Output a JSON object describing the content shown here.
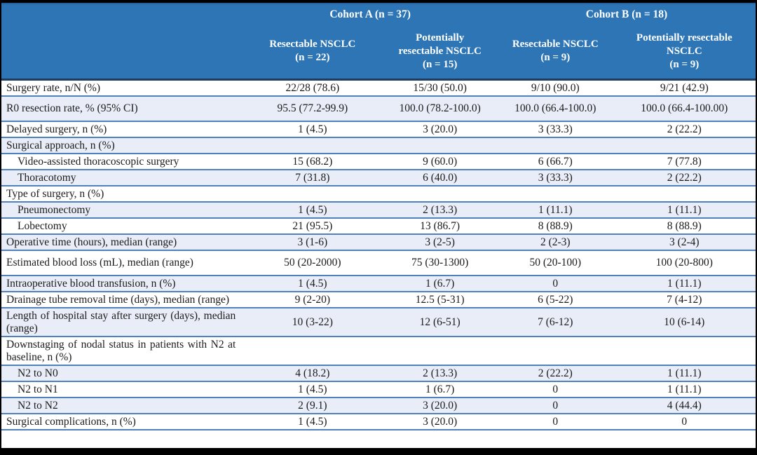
{
  "table": {
    "cohorts": [
      {
        "label": "Cohort A (n = 37)"
      },
      {
        "label": "Cohort B (n = 18)"
      }
    ],
    "columns": [
      {
        "label": "Resectable NSCLC\n(n = 22)"
      },
      {
        "label": "Potentially\nresectable NSCLC\n(n = 15)"
      },
      {
        "label": "Resectable NSCLC\n(n = 9)"
      },
      {
        "label": "Potentially resectable\nNSCLC\n(n = 9)"
      }
    ],
    "rows": [
      {
        "label": "Surgery rate, n/N (%)",
        "indent": false,
        "size": "",
        "values": [
          "22/28 (78.6)",
          "15/30 (50.0)",
          "9/10 (90.0)",
          "9/21 (42.9)"
        ]
      },
      {
        "label": "R0 resection rate, % (95% CI)",
        "indent": false,
        "size": "tall",
        "values": [
          "95.5 (77.2-99.9)",
          "100.0 (78.2-100.0)",
          "100.0 (66.4-100.0)",
          "100.0 (66.4-100.00)"
        ]
      },
      {
        "label": "Delayed surgery, n (%)",
        "indent": false,
        "size": "",
        "values": [
          "1 (4.5)",
          "3 (20.0)",
          "3 (33.3)",
          "2 (22.2)"
        ]
      },
      {
        "label": "Surgical approach, n (%)",
        "indent": false,
        "size": "",
        "values": [
          "",
          "",
          "",
          ""
        ]
      },
      {
        "label": "Video-assisted thoracoscopic surgery",
        "indent": true,
        "size": "",
        "values": [
          "15 (68.2)",
          "9 (60.0)",
          "6 (66.7)",
          "7 (77.8)"
        ]
      },
      {
        "label": "Thoracotomy",
        "indent": true,
        "size": "",
        "values": [
          "7 (31.8)",
          "6 (40.0)",
          "3 (33.3)",
          "2 (22.2)"
        ]
      },
      {
        "label": "Type of surgery, n (%)",
        "indent": false,
        "size": "",
        "values": [
          "",
          "",
          "",
          ""
        ]
      },
      {
        "label": "Pneumonectomy",
        "indent": true,
        "size": "",
        "values": [
          "1 (4.5)",
          "2 (13.3)",
          "1 (11.1)",
          "1 (11.1)"
        ]
      },
      {
        "label": "Lobectomy",
        "indent": true,
        "size": "",
        "values": [
          "21 (95.5)",
          "13 (86.7)",
          "8 (88.9)",
          "8 (88.9)"
        ]
      },
      {
        "label": "Operative time (hours), median (range)",
        "indent": false,
        "size": "",
        "values": [
          "3 (1-6)",
          "3 (2-5)",
          "2 (2-3)",
          "3 (2-4)"
        ]
      },
      {
        "label": "Estimated blood loss (mL), median (range)",
        "indent": false,
        "size": "tall",
        "values": [
          "50 (20-2000)",
          "75 (30-1300)",
          "50 (20-100)",
          "100 (20-800)"
        ]
      },
      {
        "label": "Intraoperative blood transfusion, n (%)",
        "indent": false,
        "size": "",
        "values": [
          "1 (4.5)",
          "1 (6.7)",
          "0",
          "1 (11.1)"
        ]
      },
      {
        "label": "Drainage tube removal time (days), median (range)",
        "indent": false,
        "size": "",
        "values": [
          "9 (2-20)",
          "12.5 (5-31)",
          "6 (5-22)",
          "7 (4-12)"
        ]
      },
      {
        "label": "Length of hospital stay after surgery (days), median (range)",
        "indent": false,
        "size": "",
        "values": [
          "10 (3-22)",
          "12 (6-51)",
          "7 (6-12)",
          "10 (6-14)"
        ]
      },
      {
        "label": "Downstaging of nodal status in patients with N2 at baseline, n (%)",
        "indent": false,
        "size": "",
        "values": [
          "",
          "",
          "",
          ""
        ]
      },
      {
        "label": "N2 to N0",
        "indent": true,
        "size": "",
        "values": [
          "4 (18.2)",
          "2 (13.3)",
          "2 (22.2)",
          "1 (11.1)"
        ]
      },
      {
        "label": "N2 to N1",
        "indent": true,
        "size": "",
        "values": [
          "1 (4.5)",
          "1 (6.7)",
          "0",
          "1 (11.1)"
        ]
      },
      {
        "label": "N2 to N2",
        "indent": true,
        "size": "",
        "values": [
          "2 (9.1)",
          "3 (20.0)",
          "0",
          "4 (44.4)"
        ]
      },
      {
        "label": "Surgical complications, n (%)",
        "indent": false,
        "size": "",
        "values": [
          "1 (4.5)",
          "3 (20.0)",
          "0",
          "0"
        ]
      }
    ]
  },
  "colors": {
    "header_background": "#2E75B6",
    "header_text": "#FFFFFF",
    "header_bottom_border": "#1F3C61",
    "row_separator": "#4E81BD",
    "alt_row_background": "#E8EDF7",
    "body_text": "#1B1B1B",
    "outer_border": "#000000"
  }
}
